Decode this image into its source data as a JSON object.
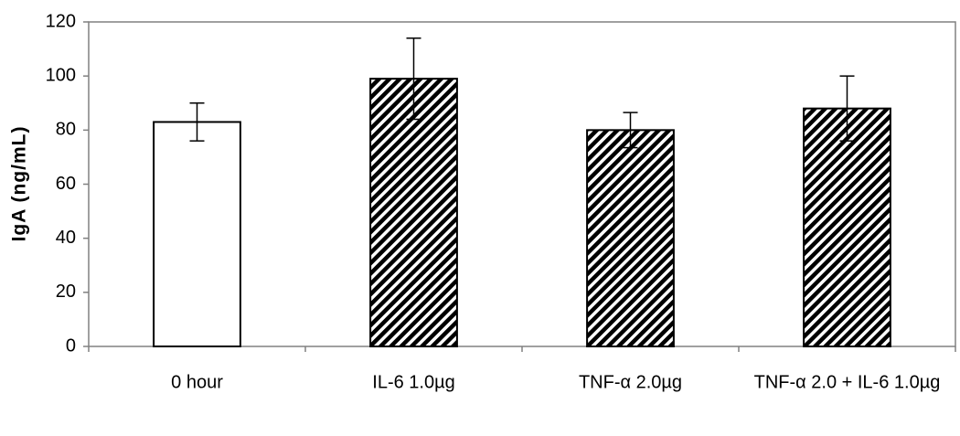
{
  "chart_data": {
    "type": "bar",
    "y_label": "IgA (ng/mL)",
    "categories": [
      "0 hour",
      "IL-6 1.0µg",
      "TNF-α 2.0µg",
      "TNF-α 2.0 + IL-6 1.0µg"
    ],
    "values": [
      83,
      99,
      80,
      88
    ],
    "errors": [
      7,
      15,
      6.5,
      12
    ],
    "color": "#ffffff",
    "hatched": [
      false,
      true,
      true,
      true
    ],
    "hatch_color": "#000000",
    "ylim": [
      0,
      120
    ],
    "yticks": [
      0,
      20,
      40,
      60,
      80,
      100,
      120
    ],
    "grid": false
  }
}
